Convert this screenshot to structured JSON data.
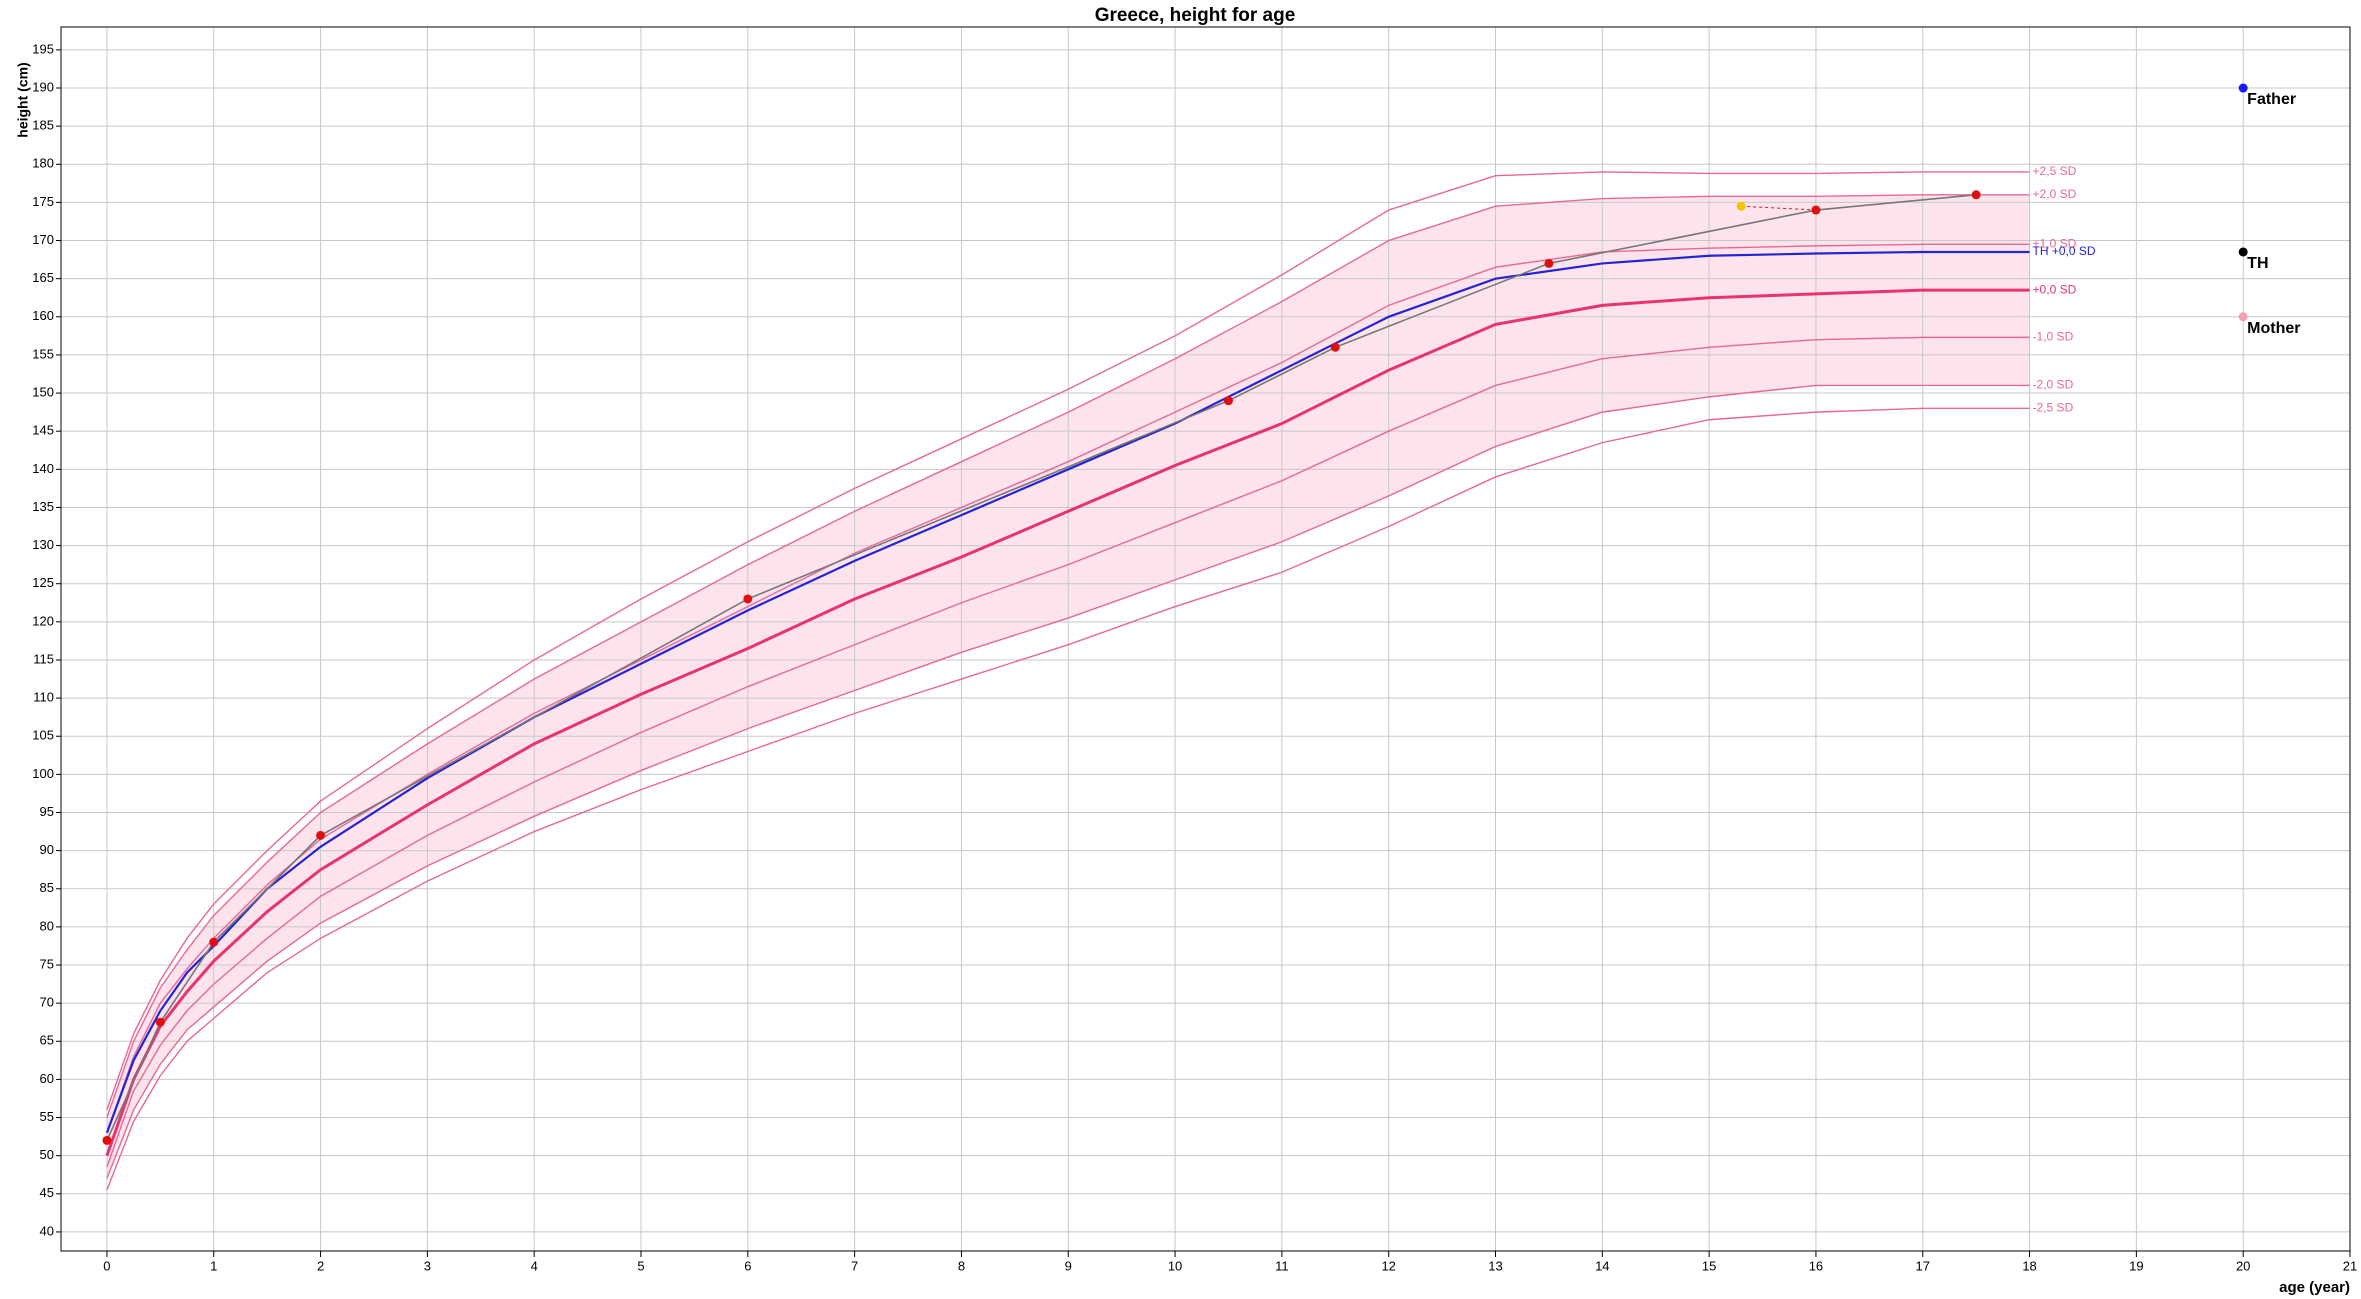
{
  "chart_data": {
    "type": "line",
    "title": "Greece, height for age",
    "x_label": "age (year)",
    "y_label": "height (cm)",
    "xlim": [
      -0.43,
      21
    ],
    "ylim": [
      37.5,
      198
    ],
    "xticks": [
      0,
      1,
      2,
      3,
      4,
      5,
      6,
      7,
      8,
      9,
      10,
      11,
      12,
      13,
      14,
      15,
      16,
      17,
      18,
      19,
      20,
      21
    ],
    "yticks": [
      40,
      45,
      50,
      55,
      60,
      65,
      70,
      75,
      80,
      85,
      90,
      95,
      100,
      105,
      110,
      115,
      120,
      125,
      130,
      135,
      140,
      145,
      150,
      155,
      160,
      165,
      170,
      175,
      180,
      185,
      190,
      195
    ],
    "grid": true,
    "band_color": "#fde3ec",
    "x": [
      0,
      0.25,
      0.5,
      0.75,
      1,
      1.5,
      2,
      3,
      4,
      5,
      6,
      7,
      8,
      9,
      10,
      11,
      12,
      13,
      14,
      15,
      16,
      17,
      18
    ],
    "series": [
      {
        "name": "+2,5 SD",
        "color": "#e8679a",
        "values": [
          56,
          66,
          73,
          78.5,
          83,
          90,
          96.5,
          106,
          115,
          123,
          130.5,
          137.5,
          144,
          150.5,
          157.5,
          165.5,
          174,
          178.5,
          179,
          178.8,
          178.8,
          179,
          179
        ]
      },
      {
        "name": "+2,0 SD",
        "color": "#e8679a",
        "values": [
          55,
          65,
          72,
          77,
          81.5,
          88.5,
          95,
          104,
          112.5,
          120,
          127.5,
          134.5,
          141,
          147.5,
          154.5,
          162,
          170,
          174.5,
          175.5,
          175.8,
          175.8,
          176,
          176
        ]
      },
      {
        "name": "+1,0 SD",
        "color": "#e8679a",
        "values": [
          53,
          63,
          70,
          74.5,
          78.5,
          85.5,
          91.5,
          100,
          108,
          115,
          122,
          129,
          135,
          141,
          147.5,
          154,
          161.5,
          166.5,
          168.5,
          169,
          169.3,
          169.5,
          169.5
        ]
      },
      {
        "name": "+0,0 SD",
        "color": "#e8336f",
        "values": [
          50,
          60,
          67,
          71.5,
          75.5,
          82,
          87.5,
          96,
          104,
          110.5,
          116.5,
          123,
          128.5,
          134.5,
          140.5,
          146,
          153,
          159,
          161.5,
          162.5,
          163,
          163.5,
          163.5
        ]
      },
      {
        "name": "-1,0 SD",
        "color": "#e8679a",
        "values": [
          48.5,
          58.5,
          64.5,
          69,
          72.5,
          78.5,
          84,
          92,
          99,
          105.5,
          111.5,
          117,
          122.5,
          127.5,
          133,
          138.5,
          145,
          151,
          154.5,
          156,
          157,
          157.3,
          157.3
        ]
      },
      {
        "name": "-2,0 SD",
        "color": "#e8679a",
        "values": [
          47,
          56,
          62,
          66.5,
          69.5,
          75.5,
          80.5,
          88,
          94.5,
          100.5,
          106,
          111,
          116,
          120.5,
          125.5,
          130.5,
          136.5,
          143,
          147.5,
          149.5,
          151,
          151,
          151
        ]
      },
      {
        "name": "-2,5 SD",
        "color": "#e8679a",
        "values": [
          45.5,
          54.5,
          60.5,
          65,
          68,
          74,
          78.5,
          86,
          92.5,
          98,
          103,
          108,
          112.5,
          117,
          122,
          126.5,
          132.5,
          139,
          143.5,
          146.5,
          147.5,
          148,
          148
        ]
      },
      {
        "name": "TH +0,0 SD",
        "color": "#2424d6",
        "values": [
          53,
          62.5,
          69,
          74,
          77.5,
          85,
          90.5,
          99.5,
          107.5,
          114.5,
          121.5,
          128,
          134,
          140,
          146,
          153,
          160,
          165,
          167,
          168,
          168.3,
          168.5,
          168.5
        ]
      }
    ],
    "measurements": {
      "color": "#777777",
      "point_color": "#e01010",
      "x": [
        0,
        0.5,
        1,
        2,
        6,
        10.5,
        11.5,
        13.5,
        16,
        17.5
      ],
      "values": [
        52,
        67.5,
        78,
        92,
        123,
        149,
        156,
        167,
        174,
        176
      ]
    },
    "bone_age": {
      "color": "#f5c400",
      "x": 15.3,
      "y": 174.5
    },
    "parents": [
      {
        "label": "Father",
        "x": 20,
        "y": 190,
        "color": "#1a1aff"
      },
      {
        "label": "TH",
        "x": 20,
        "y": 168.5,
        "color": "#000000"
      },
      {
        "label": "Mother",
        "x": 20,
        "y": 160,
        "color": "#f4a0b4"
      }
    ]
  }
}
